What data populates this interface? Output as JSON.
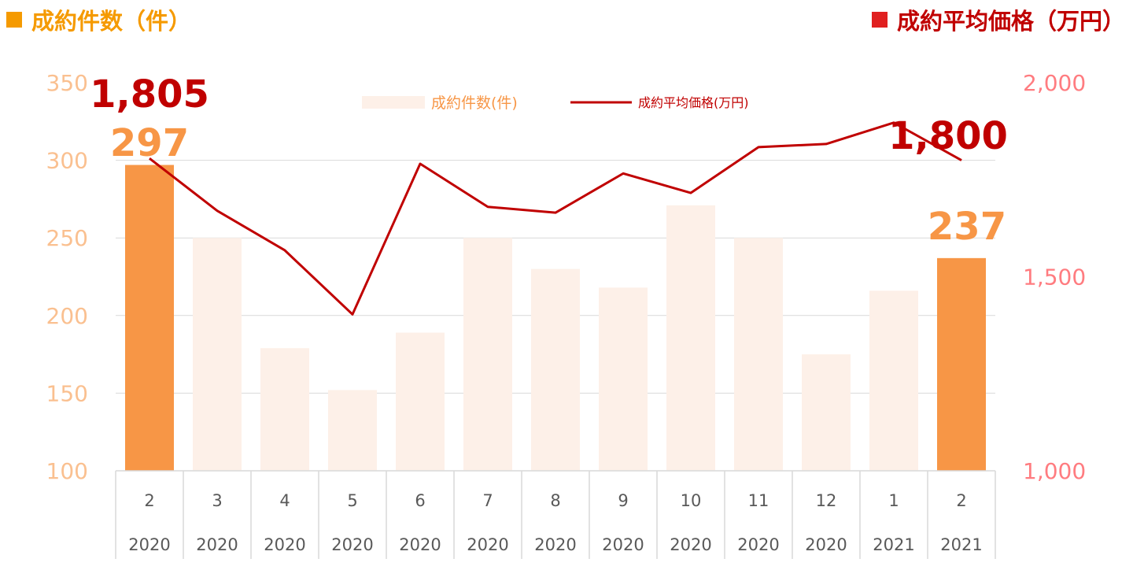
{
  "header": {
    "left_title": "成約件数（件）",
    "right_title": "成約平均価格（万円）"
  },
  "colors": {
    "bar_highlight": "#F79646",
    "bar_normal": "#FDF0E8",
    "line": "#C00000",
    "left_axis_text": "#FAC090",
    "right_axis_text": "#FF7C80",
    "left_title_square": "#F59A00",
    "right_title_square": "#E02020",
    "left_title_text": "#F59A00",
    "right_title_text": "#C00000",
    "grid": "#D9D9D9",
    "category_text": "#595959"
  },
  "chart_data": {
    "type": "bar+line",
    "categories": [
      {
        "month": "2",
        "year": "2020"
      },
      {
        "month": "3",
        "year": "2020"
      },
      {
        "month": "4",
        "year": "2020"
      },
      {
        "month": "5",
        "year": "2020"
      },
      {
        "month": "6",
        "year": "2020"
      },
      {
        "month": "7",
        "year": "2020"
      },
      {
        "month": "8",
        "year": "2020"
      },
      {
        "month": "9",
        "year": "2020"
      },
      {
        "month": "10",
        "year": "2020"
      },
      {
        "month": "11",
        "year": "2020"
      },
      {
        "month": "12",
        "year": "2020"
      },
      {
        "month": "1",
        "year": "2021"
      },
      {
        "month": "2",
        "year": "2021"
      }
    ],
    "series": [
      {
        "name": "成約件数(件)",
        "type": "bar",
        "axis": "left",
        "values": [
          297,
          250,
          179,
          152,
          189,
          250,
          230,
          218,
          271,
          250,
          175,
          216,
          237
        ],
        "highlight": [
          0,
          12
        ]
      },
      {
        "name": "成約平均価格(万円)",
        "type": "line",
        "axis": "right",
        "values": [
          1805,
          1670,
          1568,
          1403,
          1791,
          1680,
          1665,
          1766,
          1716,
          1834,
          1842,
          1897,
          1800
        ]
      }
    ],
    "left_axis": {
      "min": 100,
      "max": 350,
      "ticks": [
        "100",
        "150",
        "200",
        "250",
        "300",
        "350"
      ]
    },
    "right_axis": {
      "min": 1000,
      "max": 2000,
      "ticks": [
        "1,000",
        "1,500",
        "2,000"
      ]
    },
    "annotations": [
      {
        "text": "1,805",
        "series": "line",
        "index": 0
      },
      {
        "text": "297",
        "series": "bar",
        "index": 0
      },
      {
        "text": "1,800",
        "series": "line",
        "index": 12
      },
      {
        "text": "237",
        "series": "bar",
        "index": 12
      }
    ],
    "legend": [
      {
        "label": "成約件数(件)",
        "kind": "bar"
      },
      {
        "label": "成約平均価格(万円)",
        "kind": "line"
      }
    ],
    "legend_position": "top-center",
    "grid": true
  }
}
